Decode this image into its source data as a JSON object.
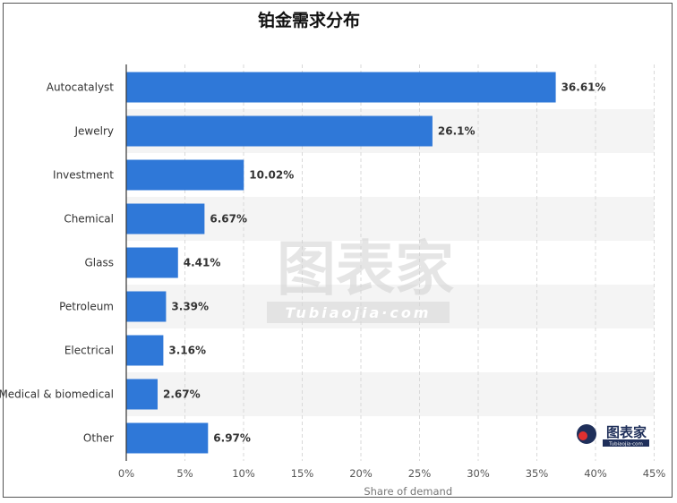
{
  "title": "铂金需求分布",
  "watermark": {
    "main_text": "图表家",
    "sub_text": "Tubiaojia·com",
    "logo_text": "图表家",
    "logo_sub": "Tubiaojia·com"
  },
  "colors": {
    "bar": "#2f78d8",
    "band": "#f4f4f4",
    "grid": "#d9d9d9",
    "axis": "#333333",
    "label": "#333333",
    "tick": "#555555"
  },
  "chart_data": {
    "type": "bar",
    "orientation": "horizontal",
    "title": "铂金需求分布",
    "xlabel": "Share of demand",
    "ylabel": "",
    "categories": [
      "Autocatalyst",
      "Jewelry",
      "Investment",
      "Chemical",
      "Glass",
      "Petroleum",
      "Electrical",
      "Medical & biomedical",
      "Other"
    ],
    "values": [
      36.61,
      26.1,
      10.02,
      6.67,
      4.41,
      3.39,
      3.16,
      2.67,
      6.97
    ],
    "value_labels": [
      "36.61%",
      "26.1%",
      "10.02%",
      "6.67%",
      "4.41%",
      "3.39%",
      "3.16%",
      "2.67%",
      "6.97%"
    ],
    "xlim": [
      0,
      45
    ],
    "xticks": [
      0,
      5,
      10,
      15,
      20,
      25,
      30,
      35,
      40,
      45
    ],
    "xtick_labels": [
      "0%",
      "5%",
      "10%",
      "15%",
      "20%",
      "25%",
      "30%",
      "35%",
      "40%",
      "45%"
    ],
    "grid": true,
    "legend": "none"
  }
}
